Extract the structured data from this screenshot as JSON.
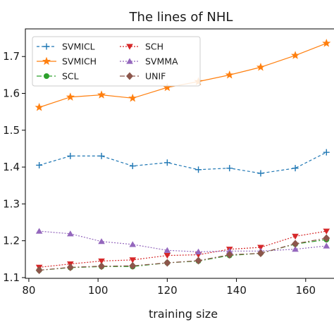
{
  "chart_data": {
    "type": "line",
    "title": "The lines of NHL",
    "xlabel": "training size",
    "ylabel": "",
    "xlim": [
      79,
      169
    ],
    "ylim": [
      1.098,
      1.775
    ],
    "xticks": [
      80,
      100,
      120,
      140,
      160
    ],
    "yticks": [
      {
        "value": 1.1,
        "label": "1.1"
      },
      {
        "value": 1.2,
        "label": "1.2"
      },
      {
        "value": 1.3,
        "label": "1.3"
      },
      {
        "value": 1.4,
        "label": "1.4"
      },
      {
        "value": 1.5,
        "label": "1.5"
      },
      {
        "value": 1.6,
        "label": "1.6"
      },
      {
        "value": 1.7,
        "label": "1.7"
      }
    ],
    "grid": false,
    "legend_position": "top-left",
    "x": [
      83,
      92,
      101,
      110,
      120,
      129,
      138,
      147,
      157,
      166
    ],
    "series": [
      {
        "name": "SVMICL",
        "color": "#1f77b4",
        "marker": "plus",
        "dash": "4,3",
        "values": [
          1.405,
          1.43,
          1.43,
          1.403,
          1.412,
          1.393,
          1.397,
          1.383,
          1.397,
          1.44
        ]
      },
      {
        "name": "SVMICH",
        "color": "#ff7f0e",
        "marker": "star",
        "dash": "",
        "values": [
          1.562,
          1.59,
          1.596,
          1.587,
          1.616,
          1.632,
          1.65,
          1.671,
          1.703,
          1.736
        ]
      },
      {
        "name": "SCL",
        "color": "#2ca02c",
        "marker": "circle",
        "dash": "7,3,2,3",
        "values": [
          1.12,
          1.127,
          1.13,
          1.13,
          1.14,
          1.145,
          1.16,
          1.166,
          1.191,
          1.203
        ]
      },
      {
        "name": "SCH",
        "color": "#d62728",
        "marker": "triangle-down",
        "dash": "2,2",
        "values": [
          1.128,
          1.137,
          1.145,
          1.148,
          1.16,
          1.162,
          1.177,
          1.182,
          1.212,
          1.226
        ]
      },
      {
        "name": "SVMMA",
        "color": "#9467bd",
        "marker": "triangle-up",
        "dash": "2,2",
        "values": [
          1.226,
          1.219,
          1.198,
          1.19,
          1.174,
          1.17,
          1.172,
          1.172,
          1.177,
          1.186
        ]
      },
      {
        "name": "UNIF",
        "color": "#8c564b",
        "marker": "diamond",
        "dash": "7,3,2,3",
        "values": [
          1.12,
          1.128,
          1.131,
          1.132,
          1.14,
          1.146,
          1.162,
          1.166,
          1.192,
          1.207
        ]
      }
    ]
  }
}
